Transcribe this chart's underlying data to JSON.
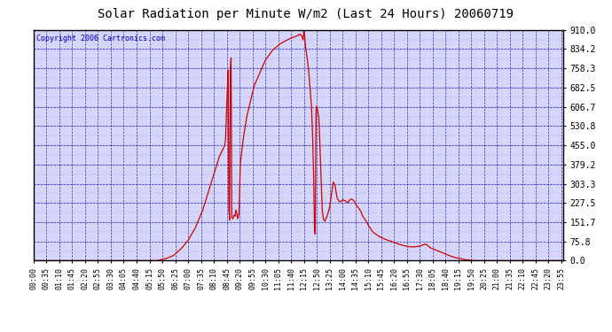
{
  "title": "Solar Radiation per Minute W/m2 (Last 24 Hours) 20060719",
  "copyright_text": "Copyright 2006 Cartronics.com",
  "background_color": "#FFFFFF",
  "plot_bg_color": "#DDDDFF",
  "grid_color": "#0000BB",
  "line_color": "#CC0000",
  "border_color": "#000000",
  "title_color": "#000000",
  "ymin": 0.0,
  "ymax": 910.0,
  "yticks": [
    0.0,
    75.8,
    151.7,
    227.5,
    303.3,
    379.2,
    455.0,
    530.8,
    606.7,
    682.5,
    758.3,
    834.2,
    910.0
  ],
  "x_tick_positions": [
    0,
    35,
    70,
    105,
    140,
    175,
    210,
    245,
    280,
    315,
    350,
    385,
    420,
    455,
    490,
    525,
    560,
    595,
    630,
    665,
    700,
    735,
    770,
    805,
    840,
    875,
    910,
    945,
    980,
    1015,
    1050,
    1085,
    1120,
    1155,
    1190,
    1225,
    1260,
    1295,
    1330,
    1365,
    1400,
    1435
  ],
  "x_tick_labels": [
    "00:00",
    "00:35",
    "01:10",
    "01:45",
    "02:20",
    "02:55",
    "03:30",
    "04:05",
    "04:40",
    "05:15",
    "05:50",
    "06:25",
    "07:00",
    "07:35",
    "08:10",
    "08:45",
    "09:20",
    "09:55",
    "10:30",
    "11:05",
    "11:40",
    "12:15",
    "12:50",
    "13:25",
    "14:00",
    "14:35",
    "15:10",
    "15:45",
    "16:20",
    "16:55",
    "17:30",
    "18:05",
    "18:40",
    "19:15",
    "19:50",
    "20:25",
    "21:00",
    "21:35",
    "22:10",
    "22:45",
    "23:20",
    "23:55"
  ],
  "total_minutes": 1440
}
